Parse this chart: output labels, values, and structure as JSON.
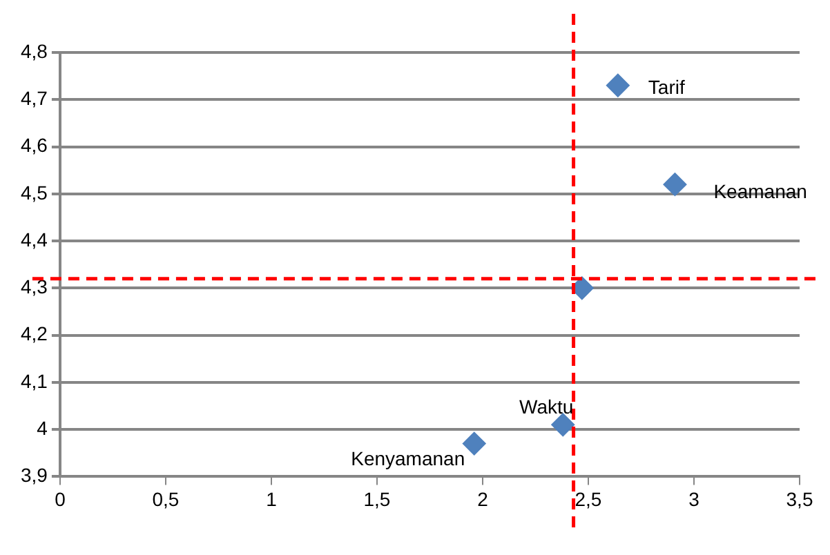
{
  "chart_data": {
    "type": "scatter",
    "series": [
      {
        "color": "#4f81bd",
        "x": [
          2.64,
          2.91,
          2.47,
          2.38,
          1.96
        ],
        "values": [
          4.73,
          4.52,
          4.3,
          4.01,
          3.97
        ]
      }
    ],
    "annotations": [
      {
        "text": "Tarif",
        "x": 2.64,
        "y": 4.73
      },
      {
        "text": "Keamanan",
        "x": 2.91,
        "y": 4.52
      },
      {
        "text": "Waktu",
        "x": 2.38,
        "y": 4.01
      },
      {
        "text": "Kenyamanan",
        "x": 1.96,
        "y": 3.97
      }
    ],
    "ref_lines": [
      {
        "axis": "x",
        "value": 2.43,
        "color": "#ff0000",
        "line_style": "dashed"
      },
      {
        "axis": "y",
        "value": 4.32,
        "color": "#ff0000",
        "line_style": "dashed"
      }
    ],
    "xlim": [
      0,
      3.5
    ],
    "xticks": [
      0,
      {
        "value": 0.5,
        "label": "0,5"
      },
      1,
      {
        "value": 1.5,
        "label": "1,5"
      },
      2,
      {
        "value": 2.5,
        "label": "2,5"
      },
      3,
      {
        "value": 3.5,
        "label": "3,5"
      }
    ],
    "ylim": [
      3.9,
      4.8
    ],
    "yticks": [
      {
        "value": 3.9,
        "label": "3,9"
      },
      4,
      {
        "value": 4.1,
        "label": "4,1"
      },
      {
        "value": 4.2,
        "label": "4,2"
      },
      {
        "value": 4.3,
        "label": "4,3"
      },
      {
        "value": 4.4,
        "label": "4,4"
      },
      {
        "value": 4.5,
        "label": "4,5"
      },
      {
        "value": 4.6,
        "label": "4,6"
      },
      {
        "value": 4.7,
        "label": "4,7"
      },
      {
        "value": 4.8,
        "label": "4,8"
      }
    ],
    "grid": "y",
    "legend": false,
    "marker": "diamond"
  }
}
